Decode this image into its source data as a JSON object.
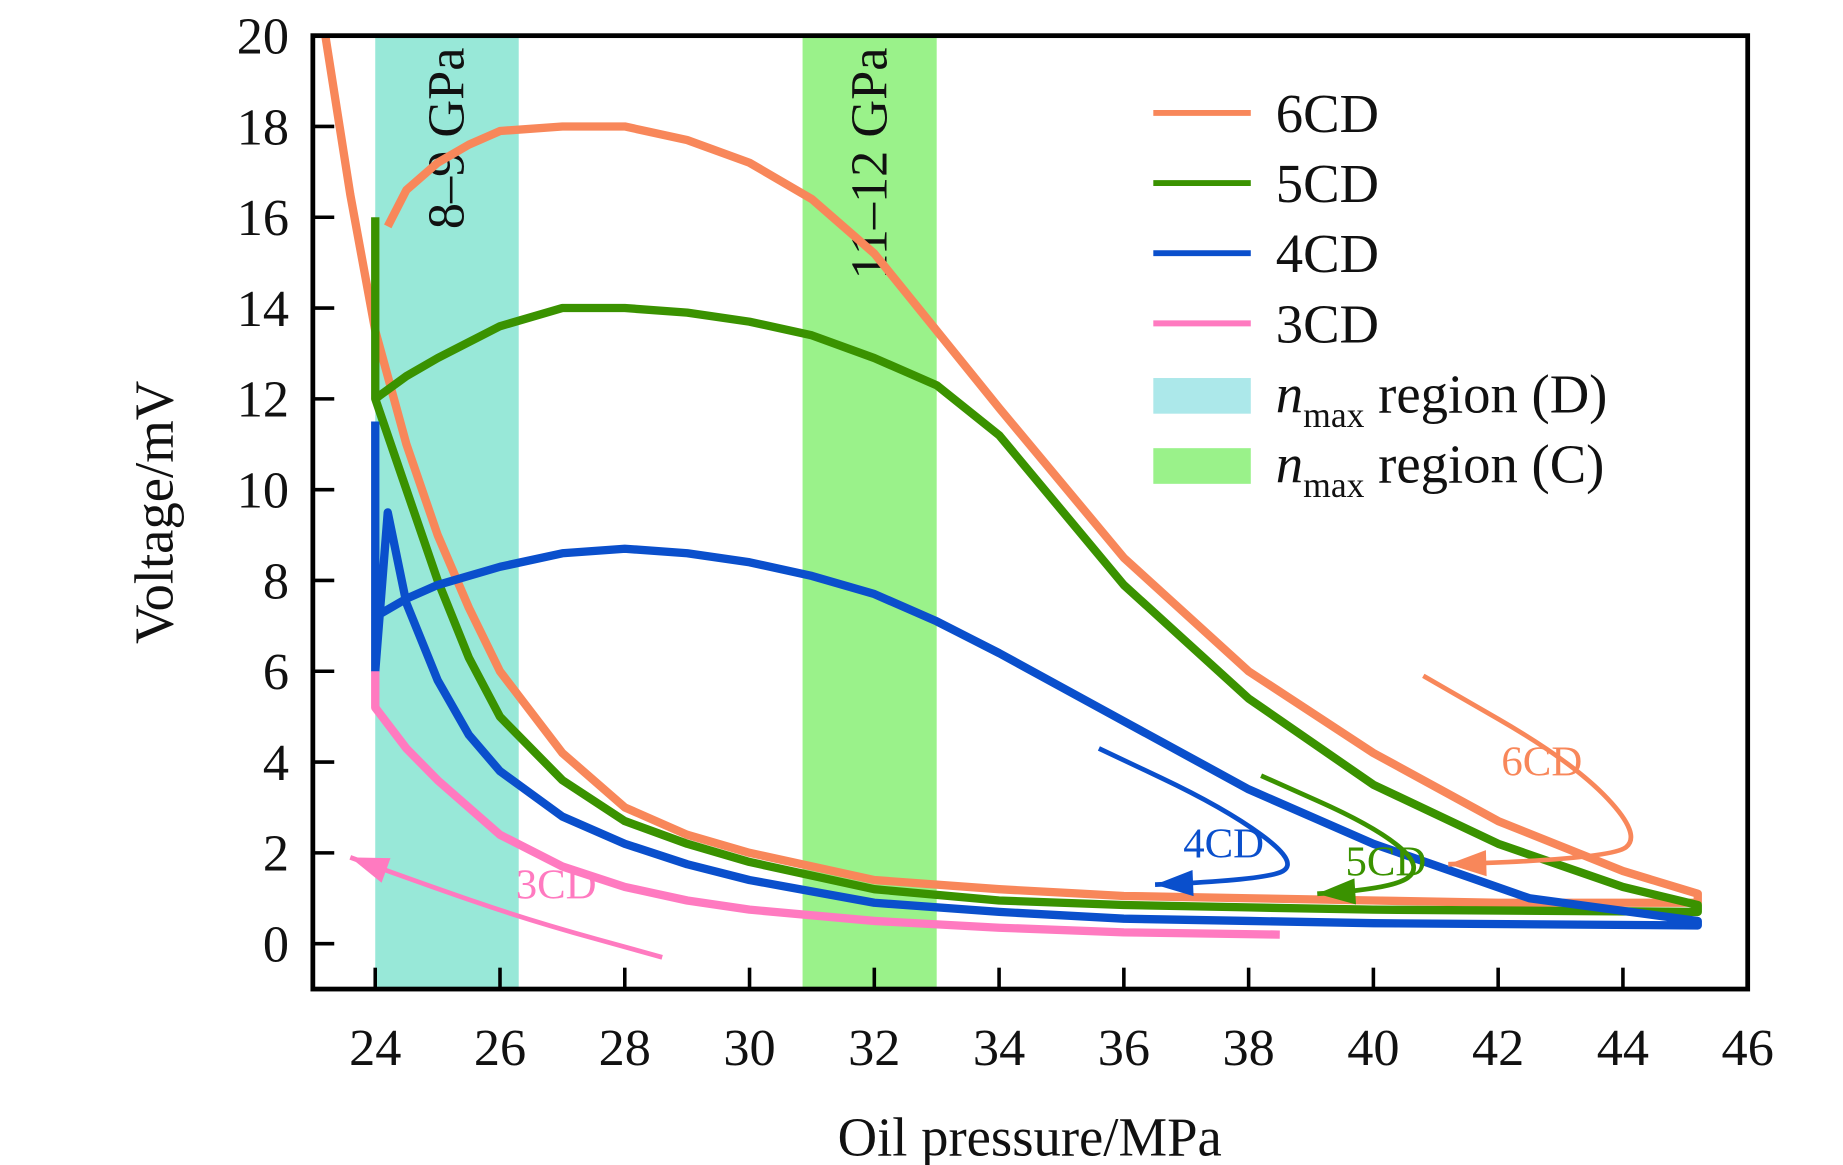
{
  "chart_data": {
    "type": "line",
    "xlabel": "Oil pressure/MPa",
    "ylabel": "Voltage/mV",
    "xlim": [
      23,
      46
    ],
    "ylim": [
      -1,
      20
    ],
    "xticks": [
      24,
      26,
      28,
      30,
      32,
      34,
      36,
      38,
      40,
      42,
      44,
      46
    ],
    "yticks": [
      0,
      2,
      4,
      6,
      8,
      10,
      12,
      14,
      16,
      18,
      20
    ],
    "grid": false,
    "legend_placement": "top-right",
    "series": [
      {
        "name": "6CD",
        "color": "#f8875a",
        "x": [
          23.2,
          23.6,
          24,
          24.5,
          25,
          25.5,
          26,
          27,
          28,
          29,
          30,
          32,
          34,
          36,
          38,
          40,
          42,
          45.2,
          45.2,
          44,
          42,
          40,
          38,
          36,
          34,
          33,
          32,
          31,
          30,
          29,
          28,
          27,
          26,
          25.5,
          25,
          24.5,
          24.2
        ],
        "y": [
          20,
          16.5,
          13.5,
          11,
          9,
          7.4,
          6,
          4.2,
          3,
          2.4,
          2,
          1.4,
          1.2,
          1.05,
          1.0,
          0.95,
          0.9,
          0.9,
          1.1,
          1.6,
          2.7,
          4.2,
          6,
          8.5,
          11.8,
          13.5,
          15.2,
          16.4,
          17.2,
          17.7,
          18,
          18,
          17.9,
          17.6,
          17.2,
          16.6,
          15.8
        ]
      },
      {
        "name": "5CD",
        "color": "#3a9200",
        "x": [
          24,
          24,
          24.5,
          25,
          25.5,
          26,
          27,
          28,
          29,
          30,
          32,
          34,
          36,
          38,
          40,
          45.2,
          45.2,
          44,
          42,
          40,
          38,
          36,
          34,
          33,
          32,
          31,
          30,
          29,
          28,
          27,
          26,
          25,
          24.5,
          24
        ],
        "y": [
          16,
          12,
          10,
          8,
          6.3,
          5,
          3.6,
          2.7,
          2.2,
          1.8,
          1.2,
          0.95,
          0.85,
          0.8,
          0.75,
          0.7,
          0.85,
          1.25,
          2.2,
          3.5,
          5.4,
          7.9,
          11.2,
          12.3,
          12.9,
          13.4,
          13.7,
          13.9,
          14,
          14,
          13.6,
          12.9,
          12.5,
          12
        ]
      },
      {
        "name": "4CD",
        "color": "#0a4fcc",
        "x": [
          24,
          24,
          24.2,
          24.5,
          25,
          25.5,
          26,
          27,
          28,
          29,
          30,
          32,
          34,
          36,
          38,
          40,
          45.2,
          45.2,
          42.5,
          40,
          38,
          36,
          34,
          33,
          32,
          31,
          30,
          29,
          28,
          27,
          26,
          25,
          24.5,
          24
        ],
        "y": [
          11.5,
          6,
          9.5,
          7.5,
          5.8,
          4.6,
          3.8,
          2.8,
          2.2,
          1.75,
          1.4,
          0.9,
          0.7,
          0.55,
          0.5,
          0.45,
          0.4,
          0.5,
          1.0,
          2.2,
          3.4,
          4.9,
          6.4,
          7.1,
          7.7,
          8.1,
          8.4,
          8.6,
          8.7,
          8.6,
          8.3,
          7.9,
          7.6,
          7.2
        ]
      },
      {
        "name": "3CD",
        "color": "#ff7ac0",
        "x": [
          24,
          24,
          24.5,
          25,
          26,
          27,
          28,
          29,
          30,
          32,
          34,
          36,
          38.5
        ],
        "y": [
          6,
          5.2,
          4.3,
          3.6,
          2.4,
          1.7,
          1.25,
          0.95,
          0.75,
          0.5,
          0.35,
          0.25,
          0.2
        ]
      }
    ],
    "regions": [
      {
        "legend_italic": "n",
        "legend_sub": "max",
        "legend_text": "region (D)",
        "x": [
          24,
          26.3
        ],
        "color": "#98e8d8",
        "legend_color": "#ace8ea",
        "label": "8–9 GPa"
      },
      {
        "legend_italic": "n",
        "legend_sub": "max",
        "legend_text": "region (C)",
        "x": [
          30.85,
          33.0
        ],
        "color": "#9af28a",
        "legend_color": "#9af28a",
        "label": "11–12 GPa"
      }
    ],
    "annotations": [
      {
        "text": "6CD",
        "color": "#f8875a",
        "at": [
          42.7,
          3.7
        ],
        "arrow": [
          [
            40.8,
            5.9
          ],
          [
            43.2,
            4.0
          ],
          [
            44.3,
            2.4
          ],
          [
            43.8,
            1.85
          ],
          [
            41.2,
            1.75
          ]
        ]
      },
      {
        "text": "5CD",
        "color": "#3a9200",
        "at": [
          40.2,
          1.5
        ],
        "arrow": [
          [
            38.2,
            3.7
          ],
          [
            40.0,
            2.6
          ],
          [
            40.8,
            1.7
          ],
          [
            40.3,
            1.2
          ],
          [
            39.1,
            1.1
          ]
        ]
      },
      {
        "text": "4CD",
        "color": "#0a4fcc",
        "at": [
          37.6,
          1.9
        ],
        "arrow": [
          [
            35.6,
            4.3
          ],
          [
            37.6,
            3.0
          ],
          [
            38.8,
            1.8
          ],
          [
            38.3,
            1.4
          ],
          [
            36.5,
            1.3
          ]
        ]
      },
      {
        "text": "3CD",
        "color": "#ff7ac0",
        "at": [
          26.9,
          1.0
        ],
        "arrow": [
          [
            28.6,
            -0.3
          ],
          [
            26.5,
            0.5
          ],
          [
            24.8,
            1.3
          ],
          [
            23.6,
            1.9
          ]
        ]
      }
    ]
  }
}
